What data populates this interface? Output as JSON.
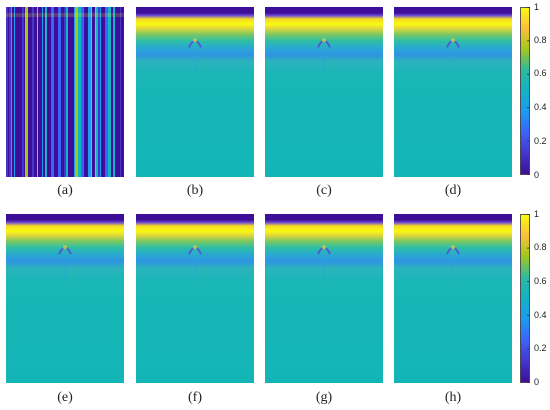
{
  "panels": [
    {
      "id": "a",
      "caption": "(a)",
      "kind": "noise"
    },
    {
      "id": "b",
      "caption": "(b)",
      "kind": "smooth"
    },
    {
      "id": "c",
      "caption": "(c)",
      "kind": "smooth"
    },
    {
      "id": "d",
      "caption": "(d)",
      "kind": "smooth"
    },
    {
      "id": "e",
      "caption": "(e)",
      "kind": "smooth"
    },
    {
      "id": "f",
      "caption": "(f)",
      "kind": "smooth"
    },
    {
      "id": "g",
      "caption": "(g)",
      "kind": "smooth"
    },
    {
      "id": "h",
      "caption": "(h)",
      "kind": "smooth"
    }
  ],
  "colorbar": {
    "ticks": [
      "1",
      "0.8",
      "0.6",
      "0.4",
      "0.2",
      "0"
    ],
    "colors": [
      "#f9fb0e",
      "#fdbe3c",
      "#a1c81c",
      "#2db9a0",
      "#13b2c5",
      "#1e9af0",
      "#3b63f6",
      "#4535cb",
      "#3d0f98"
    ]
  },
  "colors": {
    "background": "#14b5b7",
    "yellow": "#f9fb0e",
    "navy": "#3d0f98",
    "blue": "#3b63f6",
    "cyan": "#28b6c6"
  }
}
